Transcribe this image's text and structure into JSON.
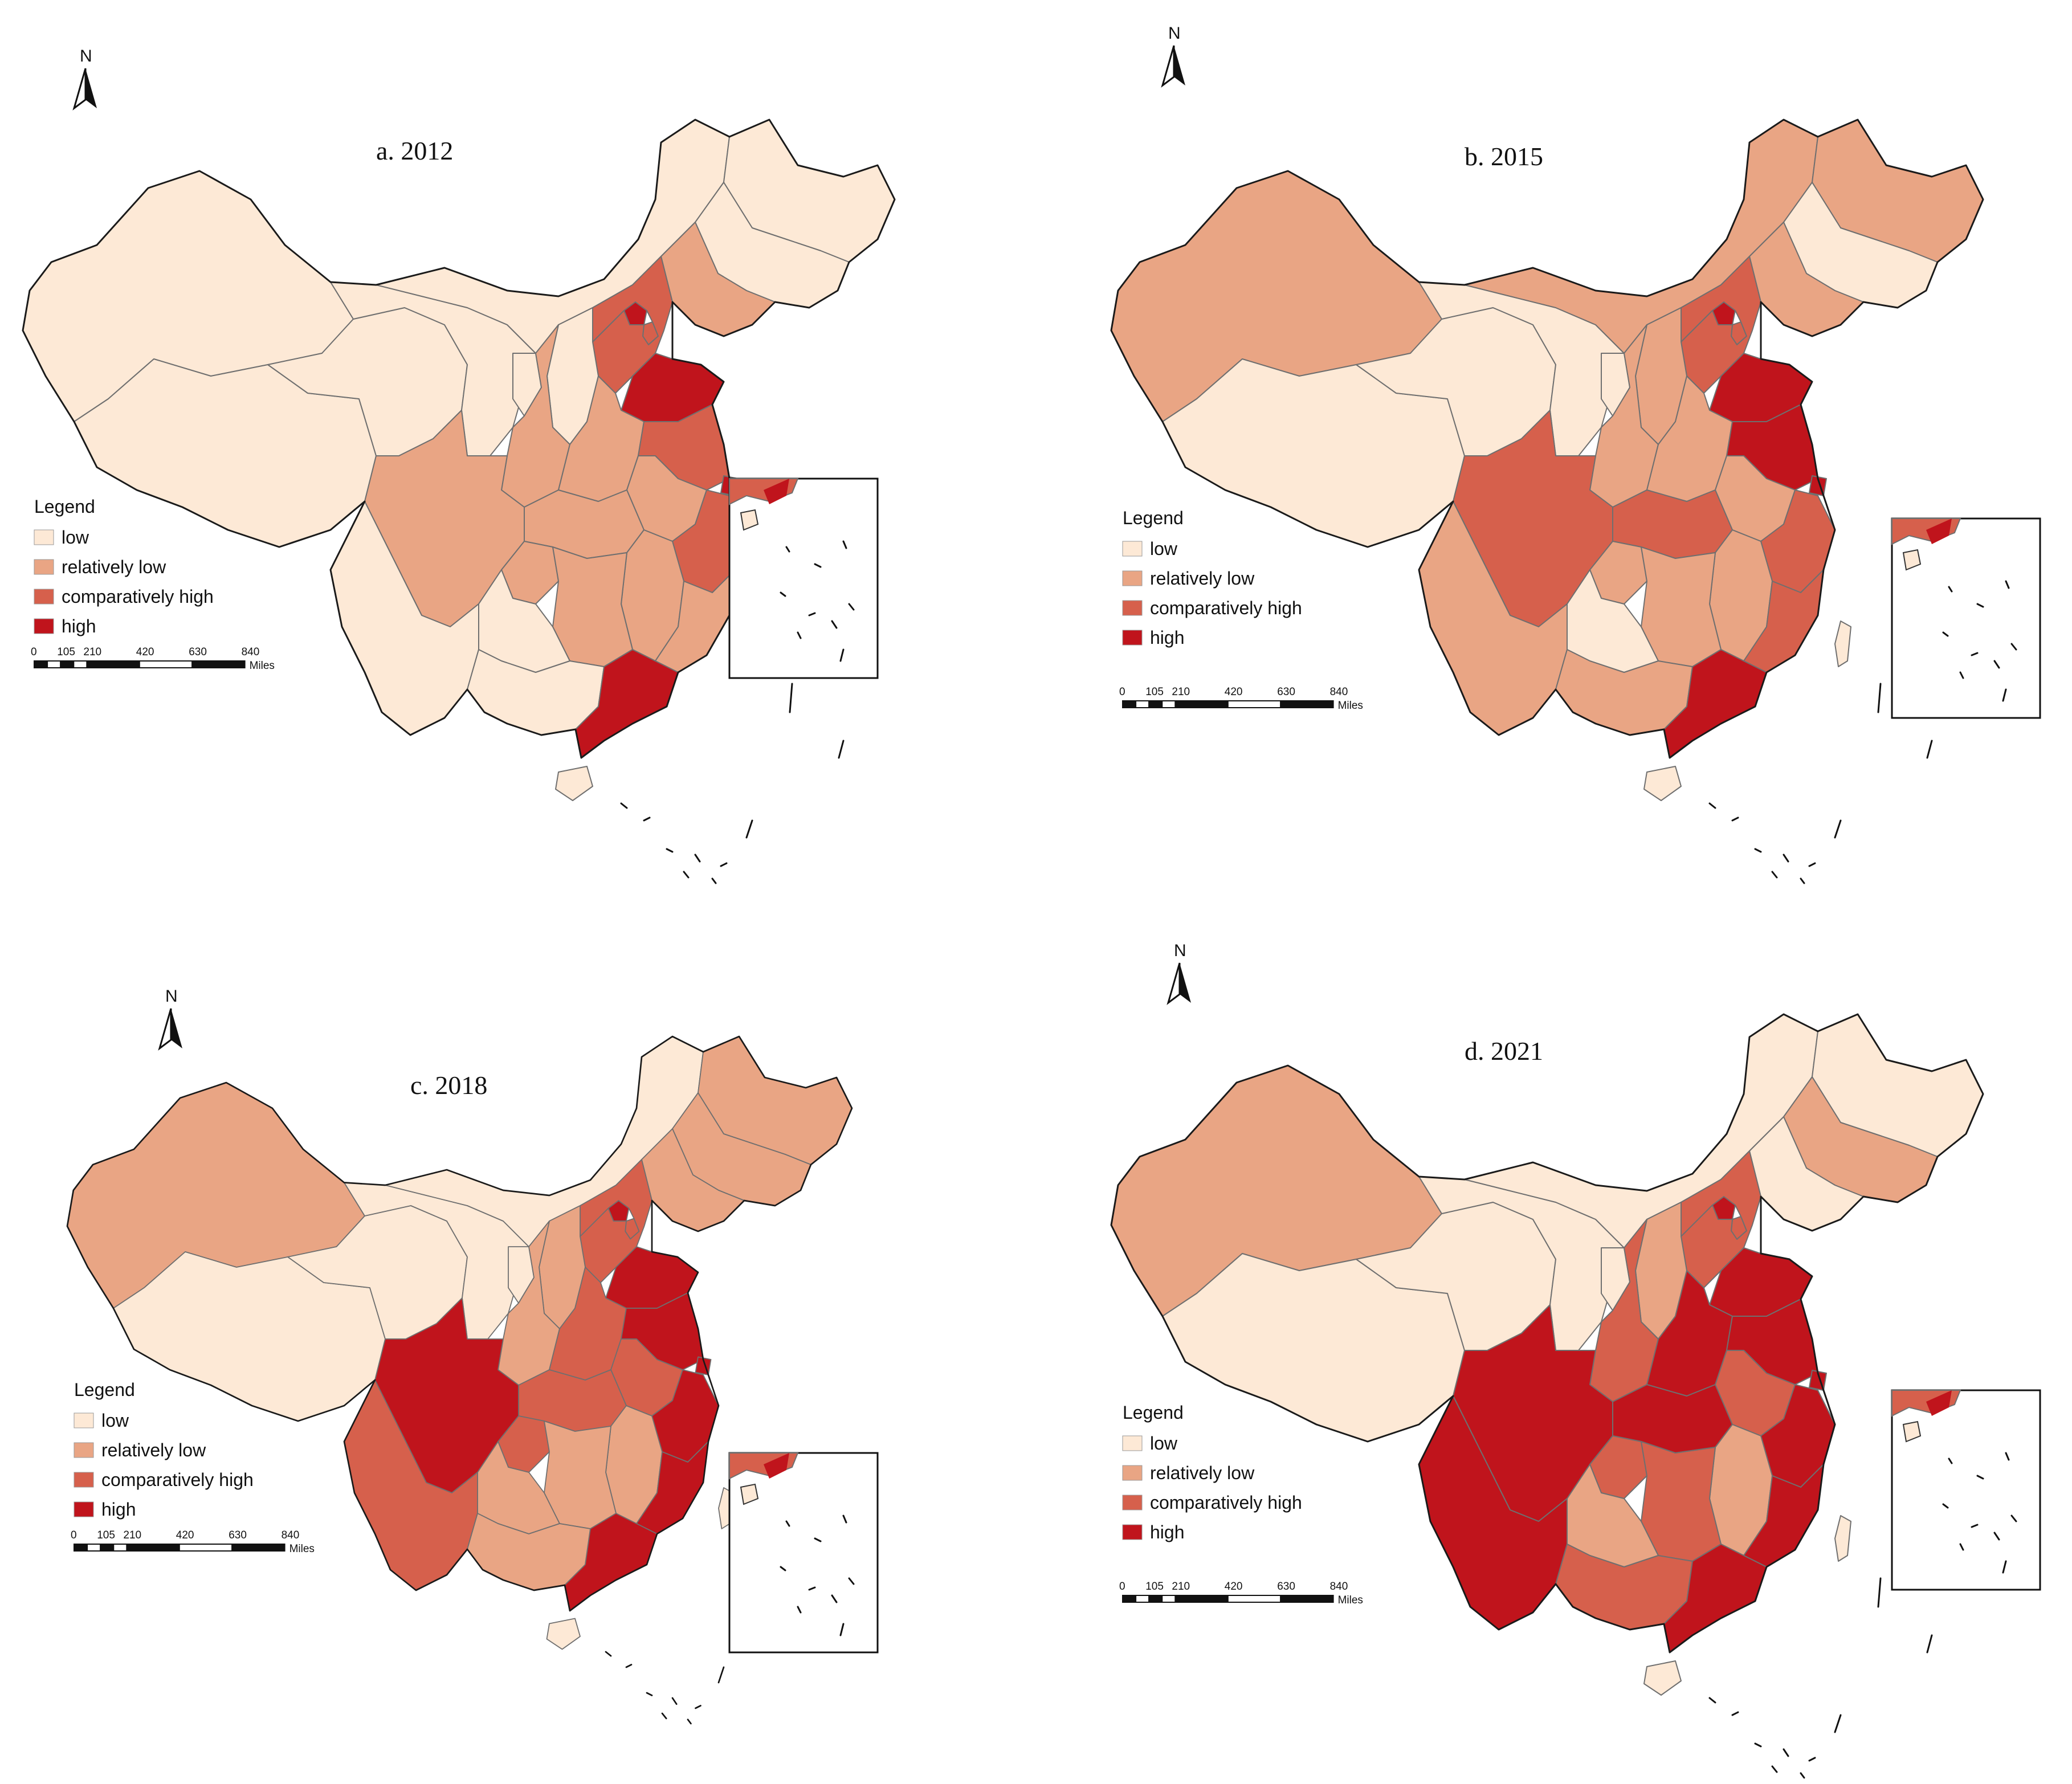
{
  "colors": {
    "low": "#fde9d6",
    "relatively_low": "#e9a584",
    "comparatively_high": "#d6604c",
    "high": "#c0141c"
  },
  "legend": {
    "title": "Legend",
    "classes": [
      {
        "key": "low",
        "label": "low"
      },
      {
        "key": "relatively_low",
        "label": "relatively low"
      },
      {
        "key": "comparatively_high",
        "label": "comparatively high"
      },
      {
        "key": "high",
        "label": "high"
      }
    ]
  },
  "north_arrow": {
    "label": "N"
  },
  "scale_bar": {
    "ticks": [
      "0",
      "105",
      "210",
      "420",
      "630",
      "840"
    ],
    "unit": "Miles"
  },
  "panels": [
    {
      "id": "a",
      "title": "a. 2012"
    },
    {
      "id": "b",
      "title": "b. 2015"
    },
    {
      "id": "c",
      "title": "c. 2018"
    },
    {
      "id": "d",
      "title": "d. 2021"
    }
  ],
  "provinces": [
    "Xinjiang",
    "Tibet",
    "Qinghai",
    "Gansu",
    "Inner Mongolia",
    "Heilongjiang",
    "Jilin",
    "Liaoning",
    "Beijing",
    "Tianjin",
    "Hebei",
    "Shanxi",
    "Shaanxi",
    "Ningxia",
    "Shandong",
    "Henan",
    "Jiangsu",
    "Shanghai",
    "Anhui",
    "Hubei",
    "Sichuan",
    "Chongqing",
    "Yunnan",
    "Guizhou",
    "Hunan",
    "Jiangxi",
    "Zhejiang",
    "Fujian",
    "Guangxi",
    "Guangdong",
    "Hainan",
    "Taiwan"
  ],
  "classification": {
    "a": {
      "Xinjiang": "low",
      "Tibet": "low",
      "Qinghai": "low",
      "Gansu": "low",
      "Inner Mongolia": "low",
      "Heilongjiang": "low",
      "Jilin": "low",
      "Liaoning": "relatively_low",
      "Beijing": "high",
      "Tianjin": "comparatively_high",
      "Hebei": "comparatively_high",
      "Shanxi": "low",
      "Shaanxi": "relatively_low",
      "Ningxia": "low",
      "Shandong": "high",
      "Henan": "relatively_low",
      "Jiangsu": "comparatively_high",
      "Shanghai": "high",
      "Anhui": "relatively_low",
      "Hubei": "relatively_low",
      "Sichuan": "relatively_low",
      "Chongqing": "relatively_low",
      "Yunnan": "low",
      "Guizhou": "low",
      "Hunan": "relatively_low",
      "Jiangxi": "relatively_low",
      "Zhejiang": "comparatively_high",
      "Fujian": "relatively_low",
      "Guangxi": "low",
      "Guangdong": "high",
      "Hainan": "low",
      "Taiwan": "low"
    },
    "b": {
      "Xinjiang": "relatively_low",
      "Tibet": "low",
      "Qinghai": "low",
      "Gansu": "low",
      "Inner Mongolia": "relatively_low",
      "Heilongjiang": "relatively_low",
      "Jilin": "low",
      "Liaoning": "relatively_low",
      "Beijing": "high",
      "Tianjin": "comparatively_high",
      "Hebei": "comparatively_high",
      "Shanxi": "relatively_low",
      "Shaanxi": "relatively_low",
      "Ningxia": "low",
      "Shandong": "high",
      "Henan": "relatively_low",
      "Jiangsu": "high",
      "Shanghai": "high",
      "Anhui": "relatively_low",
      "Hubei": "comparatively_high",
      "Sichuan": "comparatively_high",
      "Chongqing": "relatively_low",
      "Yunnan": "relatively_low",
      "Guizhou": "low",
      "Hunan": "relatively_low",
      "Jiangxi": "relatively_low",
      "Zhejiang": "comparatively_high",
      "Fujian": "comparatively_high",
      "Guangxi": "relatively_low",
      "Guangdong": "high",
      "Hainan": "low",
      "Taiwan": "low"
    },
    "c": {
      "Xinjiang": "relatively_low",
      "Tibet": "low",
      "Qinghai": "low",
      "Gansu": "low",
      "Inner Mongolia": "low",
      "Heilongjiang": "relatively_low",
      "Jilin": "relatively_low",
      "Liaoning": "relatively_low",
      "Beijing": "high",
      "Tianjin": "comparatively_high",
      "Hebei": "comparatively_high",
      "Shanxi": "relatively_low",
      "Shaanxi": "relatively_low",
      "Ningxia": "low",
      "Shandong": "high",
      "Henan": "comparatively_high",
      "Jiangsu": "high",
      "Shanghai": "high",
      "Anhui": "comparatively_high",
      "Hubei": "comparatively_high",
      "Sichuan": "high",
      "Chongqing": "comparatively_high",
      "Yunnan": "comparatively_high",
      "Guizhou": "relatively_low",
      "Hunan": "relatively_low",
      "Jiangxi": "relatively_low",
      "Zhejiang": "high",
      "Fujian": "high",
      "Guangxi": "relatively_low",
      "Guangdong": "high",
      "Hainan": "low",
      "Taiwan": "low"
    },
    "d": {
      "Xinjiang": "relatively_low",
      "Tibet": "low",
      "Qinghai": "low",
      "Gansu": "low",
      "Inner Mongolia": "low",
      "Heilongjiang": "low",
      "Jilin": "relatively_low",
      "Liaoning": "low",
      "Beijing": "high",
      "Tianjin": "comparatively_high",
      "Hebei": "comparatively_high",
      "Shanxi": "relatively_low",
      "Shaanxi": "comparatively_high",
      "Ningxia": "low",
      "Shandong": "high",
      "Henan": "high",
      "Jiangsu": "high",
      "Shanghai": "high",
      "Anhui": "comparatively_high",
      "Hubei": "high",
      "Sichuan": "high",
      "Chongqing": "comparatively_high",
      "Yunnan": "high",
      "Guizhou": "relatively_low",
      "Hunan": "comparatively_high",
      "Jiangxi": "relatively_low",
      "Zhejiang": "high",
      "Fujian": "high",
      "Guangxi": "comparatively_high",
      "Guangdong": "high",
      "Hainan": "low",
      "Taiwan": "low"
    }
  }
}
